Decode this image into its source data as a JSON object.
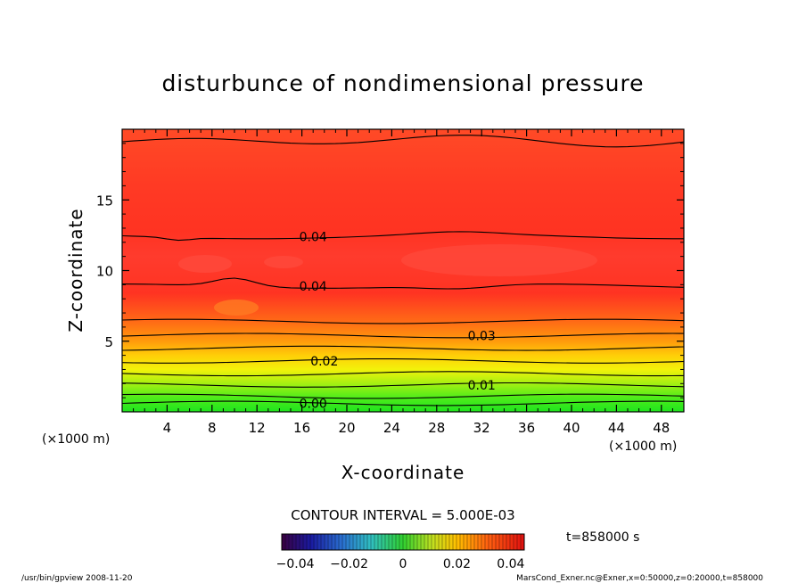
{
  "chart_data": {
    "type": "heatmap",
    "title": "disturbunce of nondimensional pressure",
    "xlabel": "X-coordinate",
    "ylabel": "Z-coordinate",
    "x_unit": "(×1000 m)",
    "z_unit": "(×1000 m)",
    "xlim": [
      0,
      50
    ],
    "ylim": [
      0,
      20
    ],
    "x_ticks": [
      "4",
      "8",
      "12",
      "16",
      "20",
      "24",
      "28",
      "32",
      "36",
      "40",
      "44",
      "48"
    ],
    "y_ticks": [
      "5",
      "10",
      "15"
    ],
    "contour_interval_label": "CONTOUR INTERVAL = 5.000E-03",
    "contour_levels": [
      0.0,
      0.005,
      0.01,
      0.015,
      0.02,
      0.025,
      0.03,
      0.035,
      0.04
    ],
    "contour_labels": [
      {
        "text": "0.00",
        "x": 17,
        "z": 0.6
      },
      {
        "text": "0.01",
        "x": 32,
        "z": 1.9
      },
      {
        "text": "0.02",
        "x": 18,
        "z": 3.6
      },
      {
        "text": "0.03",
        "x": 32,
        "z": 5.4
      },
      {
        "text": "0.04",
        "x": 17,
        "z": 8.9
      },
      {
        "text": "0.04",
        "x": 17,
        "z": 12.4
      }
    ],
    "colorbar": {
      "min": -0.045,
      "max": 0.045,
      "tick_labels": [
        "−0.04",
        "−0.02",
        "0",
        "0.02",
        "0.04"
      ],
      "tick_values": [
        -0.04,
        -0.02,
        0,
        0.02,
        0.04
      ]
    },
    "time_label": "t=858000 s",
    "colors": {
      "low": "#20e020",
      "mid": "#ffff00",
      "orange": "#ff9900",
      "high": "#ff3322"
    }
  },
  "footer": {
    "left": "/usr/bin/gpview   2008-11-20",
    "right": "MarsCond_Exner.nc@Exner,x=0:50000,z=0:20000,t=858000"
  }
}
